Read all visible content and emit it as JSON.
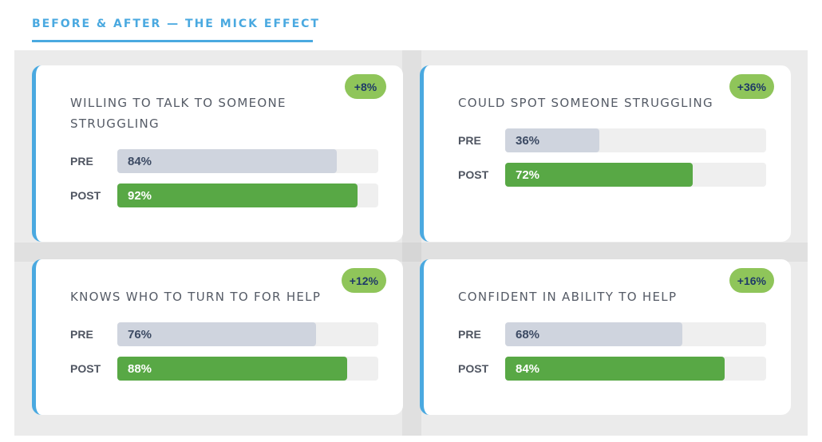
{
  "header": {
    "title": "BEFORE & AFTER — THE MICK EFFECT"
  },
  "labels": {
    "pre": "PRE",
    "post": "POST"
  },
  "colors": {
    "accent": "#4aa9e0",
    "pre_bar": "#cfd4de",
    "post_bar": "#58a845",
    "badge": "#8fc55a",
    "badge_text": "#1f3a68"
  },
  "chart_data": {
    "type": "bar",
    "orientation": "horizontal",
    "title": "BEFORE & AFTER — THE MICK EFFECT",
    "categories": [
      "WILLING TO TALK TO SOMEONE STRUGGLING",
      "COULD SPOT SOMEONE STRUGGLING",
      "KNOWS WHO TO TURN TO FOR HELP",
      "CONFIDENT IN ABILITY TO HELP"
    ],
    "series": [
      {
        "name": "PRE",
        "values": [
          84,
          36,
          76,
          68
        ]
      },
      {
        "name": "POST",
        "values": [
          92,
          72,
          88,
          84
        ]
      }
    ],
    "value_labels": {
      "pre": [
        "84%",
        "36%",
        "76%",
        "68%"
      ],
      "post": [
        "92%",
        "72%",
        "88%",
        "84%"
      ]
    },
    "changes": [
      "+8%",
      "+36%",
      "+12%",
      "+16%"
    ],
    "xlim": [
      0,
      100
    ],
    "grid": false
  }
}
